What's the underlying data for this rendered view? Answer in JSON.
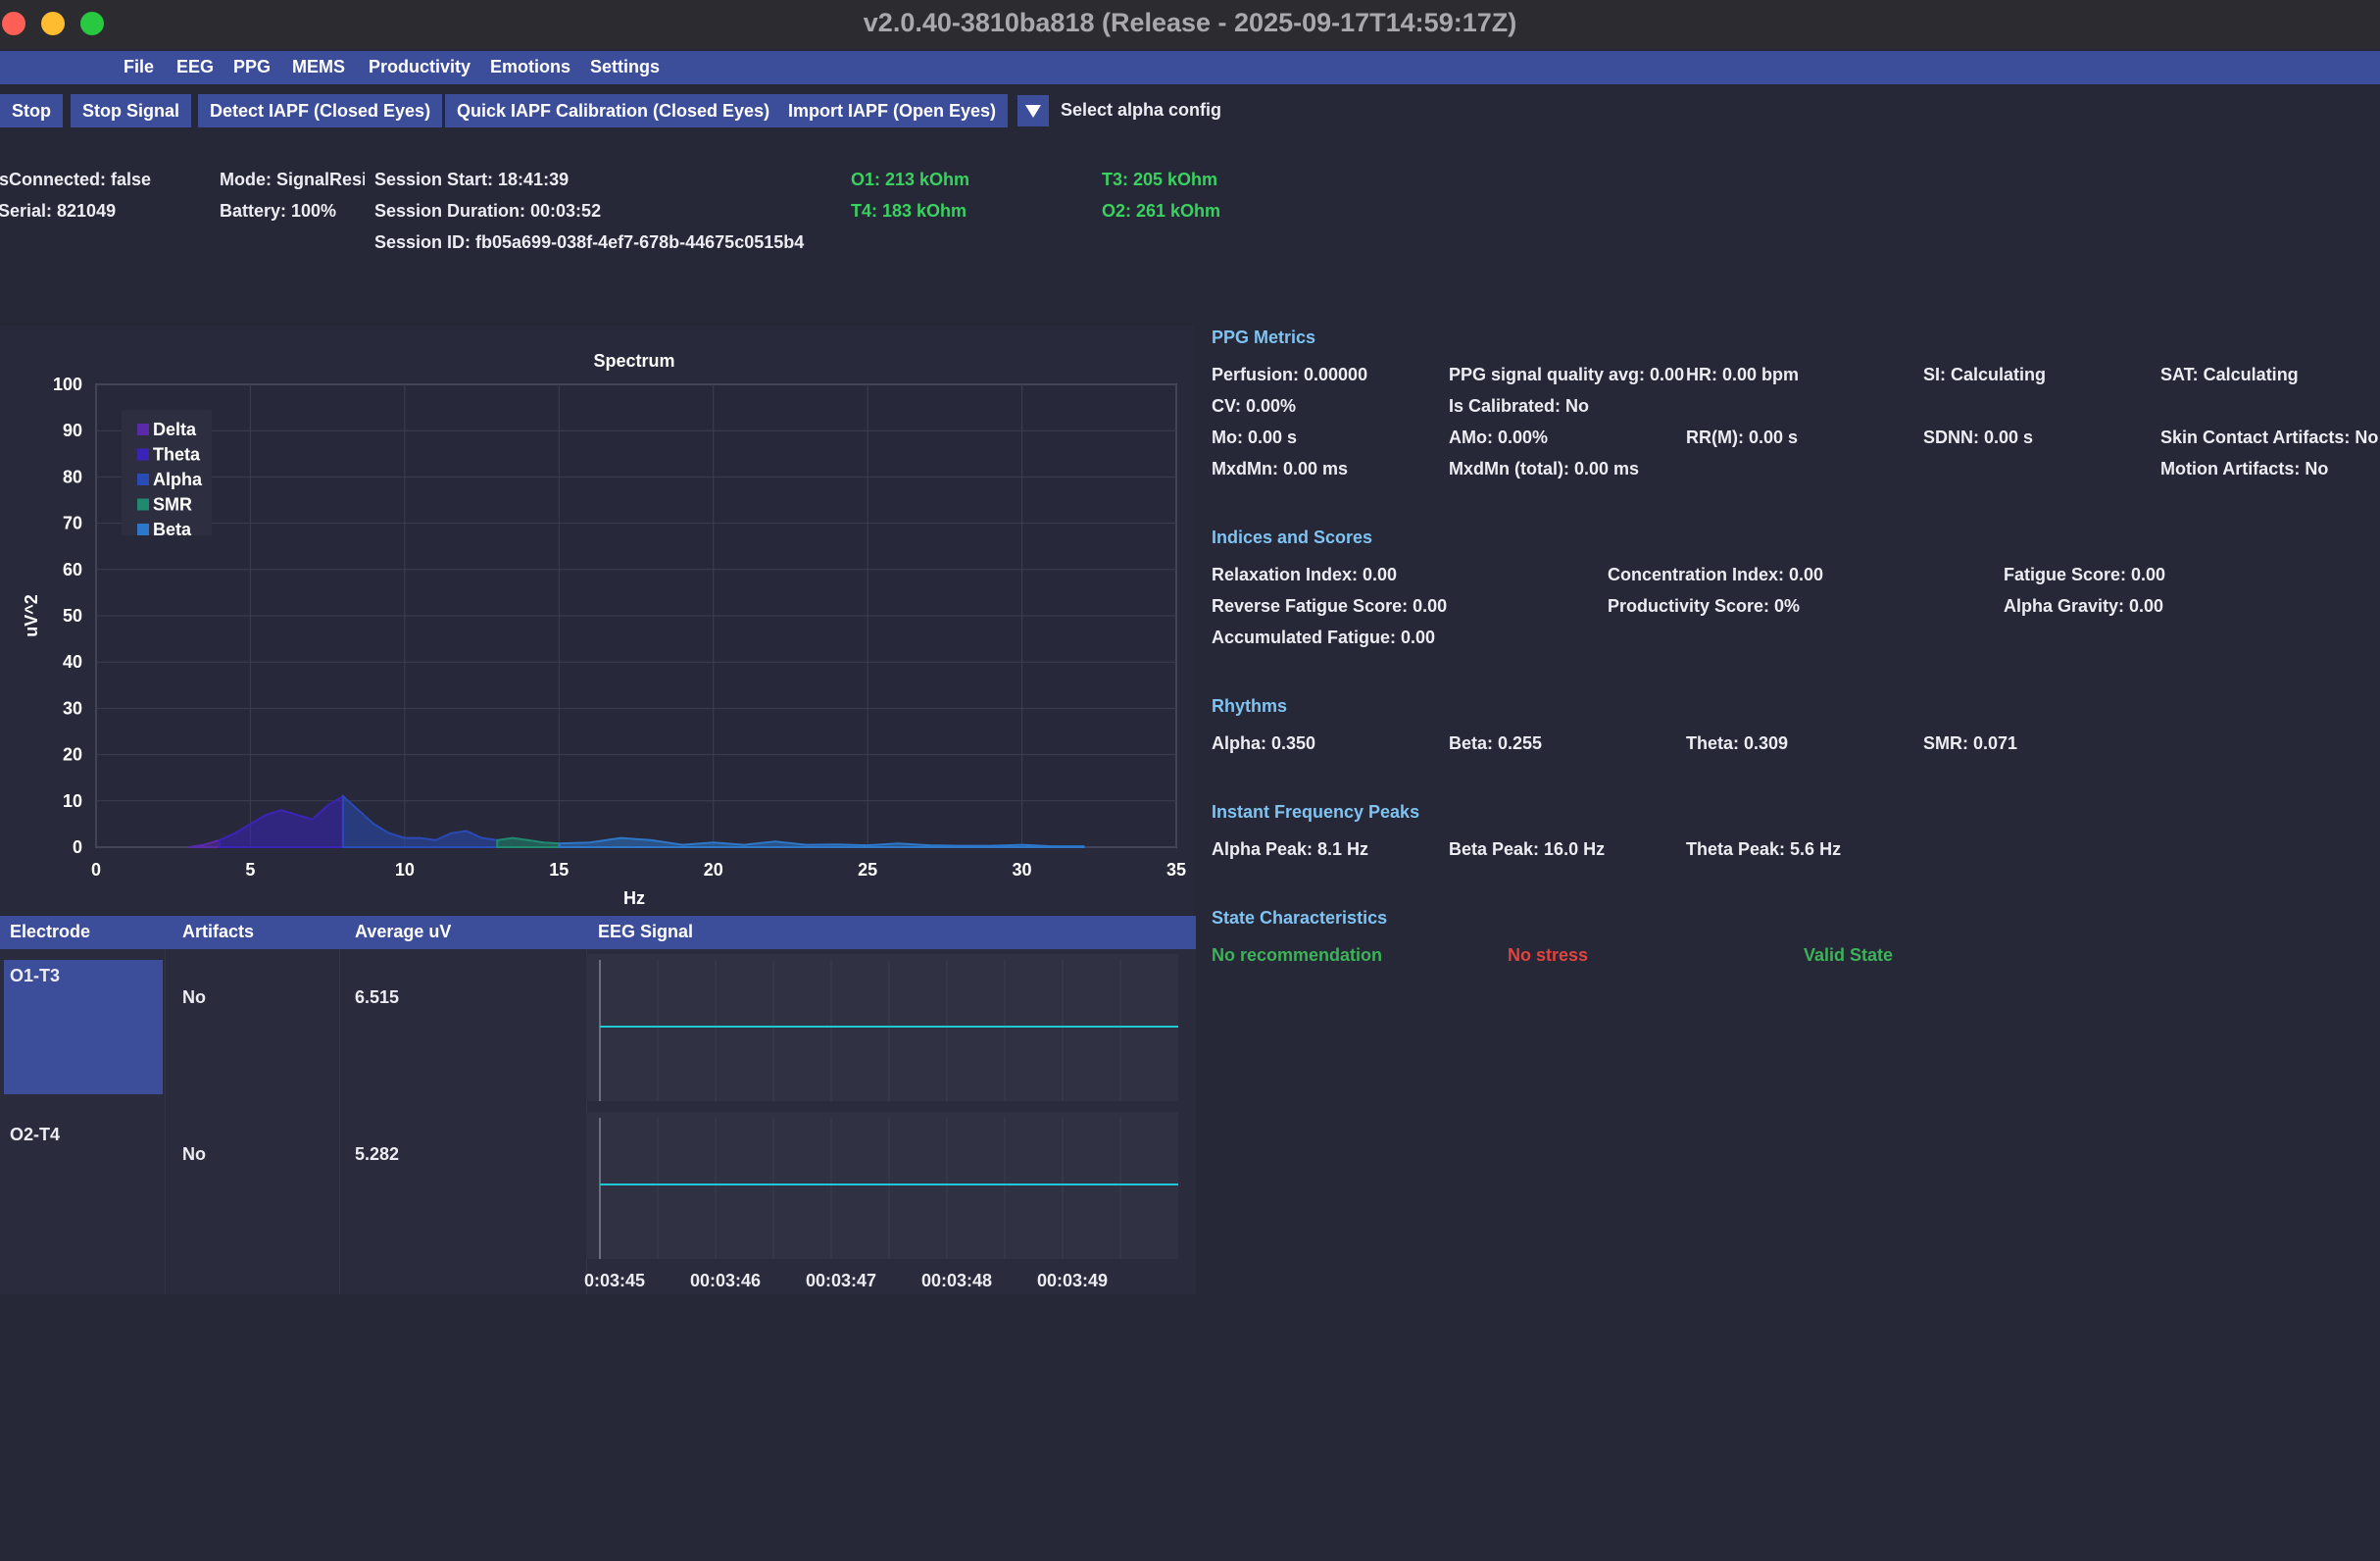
{
  "window": {
    "title": "v2.0.40-3810ba818 (Release - 2025-09-17T14:59:17Z)"
  },
  "menu": [
    "File",
    "EEG",
    "PPG",
    "MEMS",
    "Productivity",
    "Emotions",
    "Settings"
  ],
  "toolbar": {
    "stop": "Stop",
    "stop_signal": "Stop Signal",
    "detect_iapf": "Detect IAPF (Closed Eyes)",
    "quick_iapf": "Quick IAPF Calibration (Closed Eyes)",
    "import_iapf": "Import IAPF (Open Eyes)",
    "alpha_config": "Select alpha config"
  },
  "device": {
    "connected": "IsConnected: false",
    "serial": "Serial: 821049",
    "mode": "Mode: SignalResi:",
    "battery": "Battery: 100%",
    "session_start": "Session Start: 18:41:39",
    "session_duration": "Session Duration: 00:03:52",
    "session_id": "Session ID: fb05a699-038f-4ef7-678b-44675c0515b4"
  },
  "impedance": {
    "o1": "O1: 213 kOhm",
    "t3": "T3: 205 kOhm",
    "t4": "T4: 183 kOhm",
    "o2": "O2: 261 kOhm",
    "color": "#39d25f"
  },
  "chart_data": {
    "type": "area",
    "title": "Spectrum",
    "xlabel": "Hz",
    "ylabel": "uV^2",
    "xlim": [
      0,
      35
    ],
    "ylim": [
      0,
      100
    ],
    "xticks": [
      0,
      5,
      10,
      15,
      20,
      25,
      30,
      35
    ],
    "yticks": [
      0,
      10,
      20,
      30,
      40,
      50,
      60,
      70,
      80,
      90,
      100
    ],
    "legend_position": "top-left",
    "series": [
      {
        "name": "Delta",
        "color": "#5a2aa8",
        "x": [
          3,
          3.5,
          4
        ],
        "y": [
          0,
          0.5,
          1.5
        ]
      },
      {
        "name": "Theta",
        "color": "#3a24b8",
        "x": [
          4,
          4.5,
          5,
          5.5,
          6,
          6.5,
          7,
          7.5,
          8
        ],
        "y": [
          1.5,
          3,
          5,
          7,
          8,
          7,
          6,
          9,
          11
        ]
      },
      {
        "name": "Alpha",
        "color": "#2a4bb5",
        "x": [
          8,
          8.5,
          9,
          9.5,
          10,
          10.5,
          11,
          11.5,
          12,
          12.5,
          13
        ],
        "y": [
          11,
          8,
          5,
          3,
          2,
          2,
          1.5,
          3,
          3.5,
          2,
          1.5
        ]
      },
      {
        "name": "SMR",
        "color": "#1f8a70",
        "x": [
          13,
          13.5,
          14,
          14.5,
          15
        ],
        "y": [
          1.5,
          2,
          1.5,
          1,
          0.8
        ]
      },
      {
        "name": "Beta",
        "color": "#2d76c8",
        "x": [
          15,
          16,
          17,
          18,
          19,
          20,
          21,
          22,
          23,
          24,
          25,
          26,
          27,
          28,
          29,
          30,
          31,
          32
        ],
        "y": [
          0.8,
          1,
          2,
          1.5,
          0.5,
          1,
          0.5,
          1.2,
          0.5,
          0.6,
          0.4,
          0.8,
          0.4,
          0.3,
          0.3,
          0.5,
          0.2,
          0.2
        ]
      }
    ]
  },
  "table": {
    "headers": [
      "Electrode",
      "Artifacts",
      "Average uV",
      "EEG Signal"
    ],
    "rows": [
      {
        "electrode": "O1-T3",
        "artifacts": "No",
        "average": "6.515"
      },
      {
        "electrode": "O2-T4",
        "artifacts": "No",
        "average": "5.282"
      }
    ],
    "time_ticks": [
      "0:03:45",
      "00:03:46",
      "00:03:47",
      "00:03:48",
      "00:03:49"
    ],
    "signal_color": "#1fc9d3"
  },
  "ppg": {
    "title": "PPG Metrics",
    "perfusion": "Perfusion: 0.00000",
    "quality": "PPG signal quality avg: 0.00",
    "hr": "HR: 0.00 bpm",
    "si": "SI: Calculating",
    "sat": "SAT: Calculating",
    "cv": "CV: 0.00%",
    "calibrated": "Is Calibrated: No",
    "mo": "Mo: 0.00 s",
    "amo": "AMo: 0.00%",
    "rrm": "RR(M): 0.00 s",
    "sdnn": "SDNN: 0.00 s",
    "skin": "Skin Contact Artifacts: No",
    "mxdmn": "MxdMn: 0.00 ms",
    "mxdmn_total": "MxdMn (total): 0.00 ms",
    "motion": "Motion Artifacts: No"
  },
  "indices": {
    "title": "Indices and Scores",
    "relaxation": "Relaxation Index: 0.00",
    "concentration": "Concentration Index: 0.00",
    "fatigue": "Fatigue Score: 0.00",
    "reverse_fatigue": "Reverse Fatigue Score: 0.00",
    "productivity": "Productivity Score: 0%",
    "alpha_gravity": "Alpha Gravity: 0.00",
    "accumulated": "Accumulated Fatigue: 0.00"
  },
  "rhythms": {
    "title": "Rhythms",
    "alpha": "Alpha: 0.350",
    "beta": "Beta: 0.255",
    "theta": "Theta: 0.309",
    "smr": "SMR: 0.071"
  },
  "peaks": {
    "title": "Instant Frequency Peaks",
    "alpha": "Alpha Peak: 8.1 Hz",
    "beta": "Beta Peak: 16.0 Hz",
    "theta": "Theta Peak: 5.6 Hz"
  },
  "state": {
    "title": "State Characteristics",
    "recommendation": "No recommendation",
    "stress": "No stress",
    "valid": "Valid State"
  }
}
